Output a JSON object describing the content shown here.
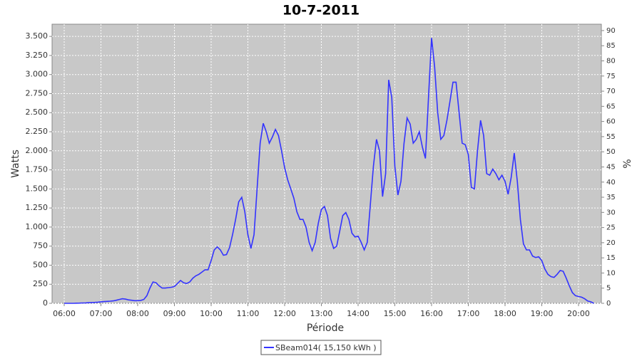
{
  "chart_data": {
    "type": "line",
    "title": "10-7-2011",
    "x_label": "Période",
    "y_label": "Watts",
    "y2_label": "%",
    "x": [
      "06:00",
      "06:05",
      "06:10",
      "06:15",
      "06:20",
      "06:25",
      "06:30",
      "06:35",
      "06:40",
      "06:45",
      "06:50",
      "06:55",
      "07:00",
      "07:05",
      "07:10",
      "07:15",
      "07:20",
      "07:25",
      "07:30",
      "07:35",
      "07:40",
      "07:45",
      "07:50",
      "07:55",
      "08:00",
      "08:05",
      "08:10",
      "08:15",
      "08:20",
      "08:25",
      "08:30",
      "08:35",
      "08:40",
      "08:45",
      "08:50",
      "08:55",
      "09:00",
      "09:05",
      "09:10",
      "09:15",
      "09:20",
      "09:25",
      "09:30",
      "09:35",
      "09:40",
      "09:45",
      "09:50",
      "09:55",
      "10:00",
      "10:05",
      "10:10",
      "10:15",
      "10:20",
      "10:25",
      "10:30",
      "10:35",
      "10:40",
      "10:45",
      "10:50",
      "10:55",
      "11:00",
      "11:05",
      "11:10",
      "11:15",
      "11:20",
      "11:25",
      "11:30",
      "11:35",
      "11:40",
      "11:45",
      "11:50",
      "11:55",
      "12:00",
      "12:05",
      "12:10",
      "12:15",
      "12:20",
      "12:25",
      "12:30",
      "12:35",
      "12:40",
      "12:45",
      "12:50",
      "12:55",
      "13:00",
      "13:05",
      "13:10",
      "13:15",
      "13:20",
      "13:25",
      "13:30",
      "13:35",
      "13:40",
      "13:45",
      "13:50",
      "13:55",
      "14:00",
      "14:05",
      "14:10",
      "14:15",
      "14:20",
      "14:25",
      "14:30",
      "14:35",
      "14:40",
      "14:45",
      "14:50",
      "14:55",
      "15:00",
      "15:05",
      "15:10",
      "15:15",
      "15:20",
      "15:25",
      "15:30",
      "15:35",
      "15:40",
      "15:45",
      "15:50",
      "15:55",
      "16:00",
      "16:05",
      "16:10",
      "16:15",
      "16:20",
      "16:25",
      "16:30",
      "16:35",
      "16:40",
      "16:45",
      "16:50",
      "16:55",
      "17:00",
      "17:05",
      "17:10",
      "17:15",
      "17:20",
      "17:25",
      "17:30",
      "17:35",
      "17:40",
      "17:45",
      "17:50",
      "17:55",
      "18:00",
      "18:05",
      "18:10",
      "18:15",
      "18:20",
      "18:25",
      "18:30",
      "18:35",
      "18:40",
      "18:45",
      "18:50",
      "18:55",
      "19:00",
      "19:05",
      "19:10",
      "19:15",
      "19:20",
      "19:25",
      "19:30",
      "19:35",
      "19:40",
      "19:45",
      "19:50",
      "19:55",
      "20:00",
      "20:05",
      "20:10",
      "20:15",
      "20:20",
      "20:25"
    ],
    "series": [
      {
        "name": "SBeam014( 15,150 kWh )",
        "color": "#3333ff",
        "values": [
          0,
          0,
          0,
          0,
          2,
          3,
          5,
          6,
          8,
          10,
          12,
          15,
          20,
          22,
          25,
          28,
          32,
          40,
          50,
          60,
          55,
          45,
          40,
          35,
          35,
          38,
          50,
          100,
          200,
          280,
          270,
          230,
          200,
          200,
          205,
          210,
          220,
          260,
          300,
          270,
          260,
          280,
          330,
          360,
          380,
          410,
          440,
          440,
          560,
          700,
          740,
          700,
          630,
          640,
          730,
          900,
          1100,
          1330,
          1390,
          1200,
          900,
          720,
          900,
          1500,
          2100,
          2360,
          2250,
          2100,
          2180,
          2280,
          2200,
          2000,
          1780,
          1620,
          1500,
          1380,
          1200,
          1100,
          1100,
          1000,
          800,
          690,
          800,
          1050,
          1230,
          1270,
          1150,
          850,
          720,
          750,
          950,
          1150,
          1190,
          1100,
          920,
          870,
          880,
          800,
          700,
          800,
          1300,
          1800,
          2150,
          2000,
          1400,
          1700,
          2930,
          2700,
          1800,
          1420,
          1600,
          2100,
          2430,
          2350,
          2100,
          2150,
          2250,
          2050,
          1900,
          2700,
          3480,
          3100,
          2500,
          2150,
          2200,
          2400,
          2650,
          2900,
          2900,
          2500,
          2100,
          2080,
          1950,
          1520,
          1500,
          2000,
          2400,
          2200,
          1700,
          1680,
          1760,
          1700,
          1620,
          1680,
          1600,
          1430,
          1650,
          1970,
          1600,
          1100,
          780,
          700,
          700,
          620,
          600,
          610,
          560,
          450,
          380,
          350,
          340,
          380,
          430,
          420,
          330,
          230,
          140,
          100,
          90,
          80,
          60,
          30,
          20,
          0
        ]
      }
    ],
    "xticks": [
      "06:00",
      "07:00",
      "08:00",
      "09:00",
      "10:00",
      "11:00",
      "12:00",
      "13:00",
      "14:00",
      "15:00",
      "16:00",
      "17:00",
      "18:00",
      "19:00",
      "20:00"
    ],
    "ylim": [
      0,
      3660
    ],
    "yticks": [
      0,
      {
        "value": 250,
        "label": "250"
      },
      {
        "value": 500,
        "label": "500"
      },
      {
        "value": 750,
        "label": "750"
      },
      {
        "value": 1000,
        "label": "1.000"
      },
      {
        "value": 1250,
        "label": "1.250"
      },
      {
        "value": 1500,
        "label": "1.500"
      },
      {
        "value": 1750,
        "label": "1.750"
      },
      {
        "value": 2000,
        "label": "2.000"
      },
      {
        "value": 2250,
        "label": "2.250"
      },
      {
        "value": 2500,
        "label": "2.500"
      },
      {
        "value": 2750,
        "label": "2.750"
      },
      {
        "value": 3000,
        "label": "3.000"
      },
      {
        "value": 3250,
        "label": "3.250"
      },
      {
        "value": 3500,
        "label": "3.500"
      }
    ],
    "y2lim": [
      0,
      92.1
    ],
    "y2ticks": [
      0,
      5,
      10,
      15,
      20,
      25,
      30,
      35,
      40,
      45,
      50,
      55,
      60,
      65,
      70,
      75,
      80,
      85,
      90
    ],
    "grid": true
  }
}
